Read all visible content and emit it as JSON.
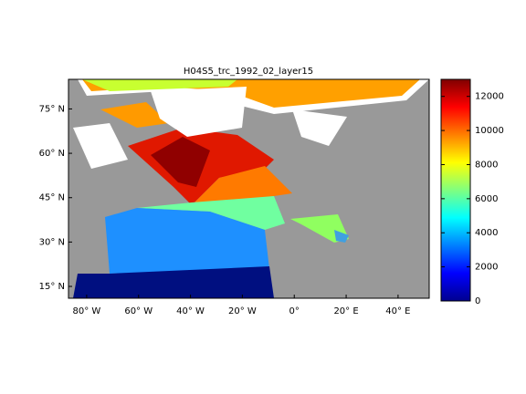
{
  "chart_data": {
    "type": "map",
    "title": "H04S5_trc_1992_02_layer15",
    "xlim": [
      -87,
      52
    ],
    "xticks": [
      {
        "value": -80,
        "label": "80° W"
      },
      {
        "value": -60,
        "label": "60° W"
      },
      {
        "value": -40,
        "label": "40° W"
      },
      {
        "value": -20,
        "label": "20° W"
      },
      {
        "value": 0,
        "label": "0°"
      },
      {
        "value": 20,
        "label": "20° E"
      },
      {
        "value": 40,
        "label": "40° E"
      }
    ],
    "ylim": [
      11,
      85
    ],
    "yticks": [
      {
        "value": 15,
        "label": "15° N"
      },
      {
        "value": 30,
        "label": "30° N"
      },
      {
        "value": 45,
        "label": "45° N"
      },
      {
        "value": 60,
        "label": "60° N"
      },
      {
        "value": 75,
        "label": "75° N"
      }
    ],
    "colorbar": {
      "lim": [
        0,
        13000
      ],
      "ticks": [
        0,
        2000,
        4000,
        6000,
        8000,
        10000,
        12000
      ]
    }
  }
}
